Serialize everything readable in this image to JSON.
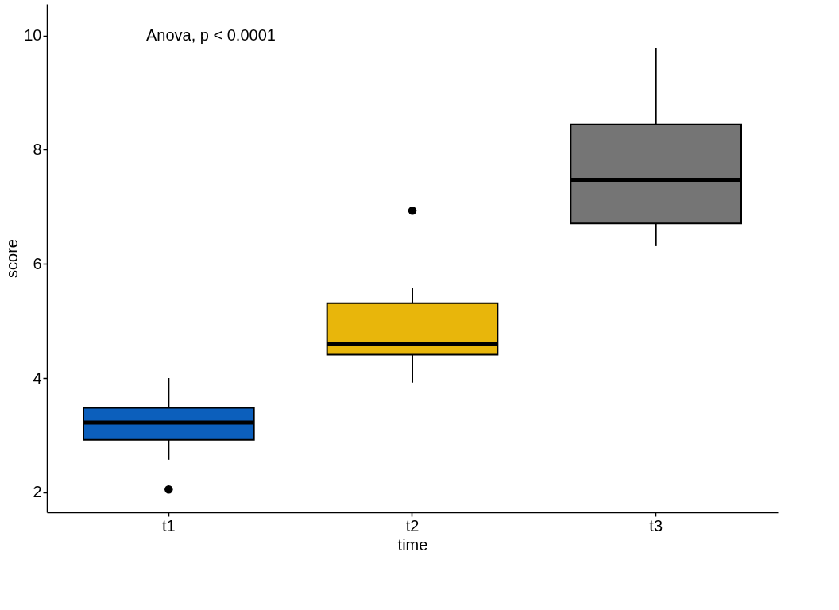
{
  "chart_data": {
    "type": "box",
    "xlabel": "time",
    "ylabel": "score",
    "categories": [
      "t1",
      "t2",
      "t3"
    ],
    "colors": [
      "#0c5fbc",
      "#e8b60b",
      "#757575"
    ],
    "boxes": [
      {
        "low": 2.57,
        "q1": 2.92,
        "median": 3.22,
        "q3": 3.48,
        "high": 4.0,
        "outliers": [
          2.05
        ]
      },
      {
        "low": 3.92,
        "q1": 4.41,
        "median": 4.6,
        "q3": 5.31,
        "high": 5.58,
        "outliers": [
          6.93
        ]
      },
      {
        "low": 6.31,
        "q1": 6.71,
        "median": 7.47,
        "q3": 8.44,
        "high": 9.78
      }
    ],
    "ylim": [
      1.65,
      10.55
    ],
    "yticks": [
      2,
      4,
      6,
      8,
      10
    ],
    "grid": false,
    "legend": false,
    "annotations": [
      "Anova, p < 0.0001"
    ]
  }
}
